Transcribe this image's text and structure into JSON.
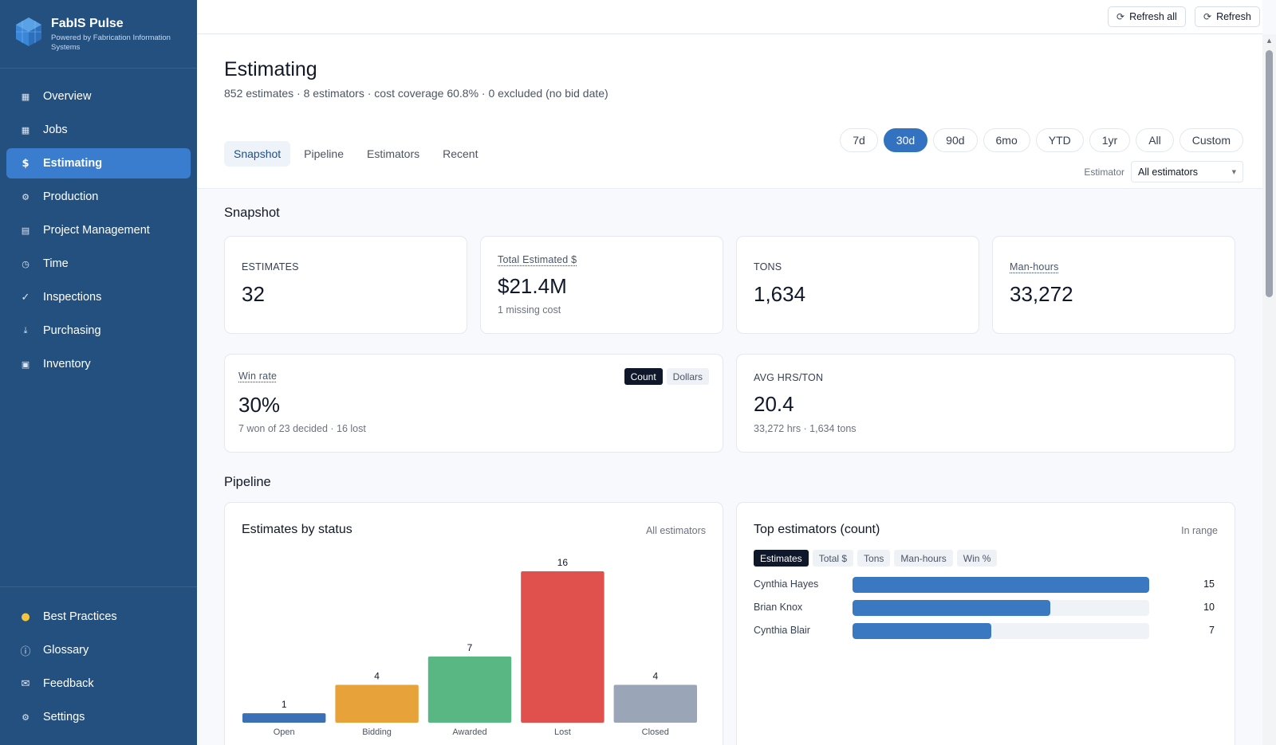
{
  "app": {
    "name": "FabIS Pulse",
    "tagline": "Powered by Fabrication Information Systems"
  },
  "sidebar": {
    "items": [
      {
        "label": "Overview",
        "icon": "grid-icon"
      },
      {
        "label": "Jobs",
        "icon": "table-icon"
      },
      {
        "label": "Estimating",
        "icon": "dollar-icon",
        "active": true
      },
      {
        "label": "Production",
        "icon": "gear-icon"
      },
      {
        "label": "Project Management",
        "icon": "clipboard-icon"
      },
      {
        "label": "Time",
        "icon": "clock-icon"
      },
      {
        "label": "Inspections",
        "icon": "check-icon"
      },
      {
        "label": "Purchasing",
        "icon": "download-icon"
      },
      {
        "label": "Inventory",
        "icon": "box-icon"
      }
    ],
    "bottom_items": [
      {
        "label": "Best Practices",
        "icon": "lightbulb-icon"
      },
      {
        "label": "Glossary",
        "icon": "info-icon"
      },
      {
        "label": "Feedback",
        "icon": "mail-icon"
      },
      {
        "label": "Settings",
        "icon": "settings-icon"
      }
    ]
  },
  "topbar": {
    "refresh_all": "Refresh all",
    "refresh": "Refresh"
  },
  "header": {
    "title": "Estimating",
    "subtitle": "852 estimates · 8 estimators · cost coverage 60.8% · 0 excluded (no bid date)",
    "tabs": [
      "Snapshot",
      "Pipeline",
      "Estimators",
      "Recent"
    ],
    "active_tab": "Snapshot",
    "ranges": [
      "7d",
      "30d",
      "90d",
      "6mo",
      "YTD",
      "1yr",
      "All",
      "Custom"
    ],
    "active_range": "30d",
    "estimator_label": "Estimator",
    "estimator_value": "All estimators"
  },
  "snapshot": {
    "title": "Snapshot",
    "kpis": [
      {
        "label": "ESTIMATES",
        "value": "32"
      },
      {
        "label": "Total Estimated $",
        "value": "$21.4M",
        "sub": "1 missing cost"
      },
      {
        "label": "TONS",
        "value": "1,634"
      },
      {
        "label": "Man-hours",
        "value": "33,272"
      }
    ],
    "win_rate": {
      "label": "Win rate",
      "value": "30%",
      "sub": "7 won of 23 decided · 16 lost",
      "toggle": [
        "Count",
        "Dollars"
      ],
      "toggle_active": "Count"
    },
    "avg_hrs": {
      "label": "AVG HRS/TON",
      "value": "20.4",
      "sub": "33,272 hrs · 1,634 tons"
    }
  },
  "pipeline": {
    "title": "Pipeline",
    "status_chart": {
      "title": "Estimates by status",
      "note": "All estimators"
    },
    "top_estimators": {
      "title": "Top estimators (count)",
      "note": "In range",
      "tabs": [
        "Estimates",
        "Total $",
        "Tons",
        "Man-hours",
        "Win %"
      ],
      "active_tab": "Estimates",
      "rows": [
        {
          "name": "Cynthia Hayes",
          "value": 15
        },
        {
          "name": "Brian Knox",
          "value": 10
        },
        {
          "name": "Cynthia Blair",
          "value": 7
        }
      ],
      "max": 15
    }
  },
  "colors": {
    "sidebar_bg": "#24507f",
    "accent": "#3272c1",
    "open": "#3b6fb6",
    "bidding": "#e8a23a",
    "awarded": "#58b783",
    "lost": "#e0504d",
    "closed": "#9aa6b8"
  },
  "chart_data": {
    "type": "bar",
    "categories": [
      "Open",
      "Bidding",
      "Awarded",
      "Lost",
      "Closed"
    ],
    "values": [
      1,
      4,
      7,
      16,
      4
    ],
    "title": "Estimates by status",
    "xlabel": "",
    "ylabel": "",
    "ylim": [
      0,
      16
    ],
    "grid": false,
    "bar_colors": [
      "#3b6fb6",
      "#e8a23a",
      "#58b783",
      "#e0504d",
      "#9aa6b8"
    ]
  }
}
